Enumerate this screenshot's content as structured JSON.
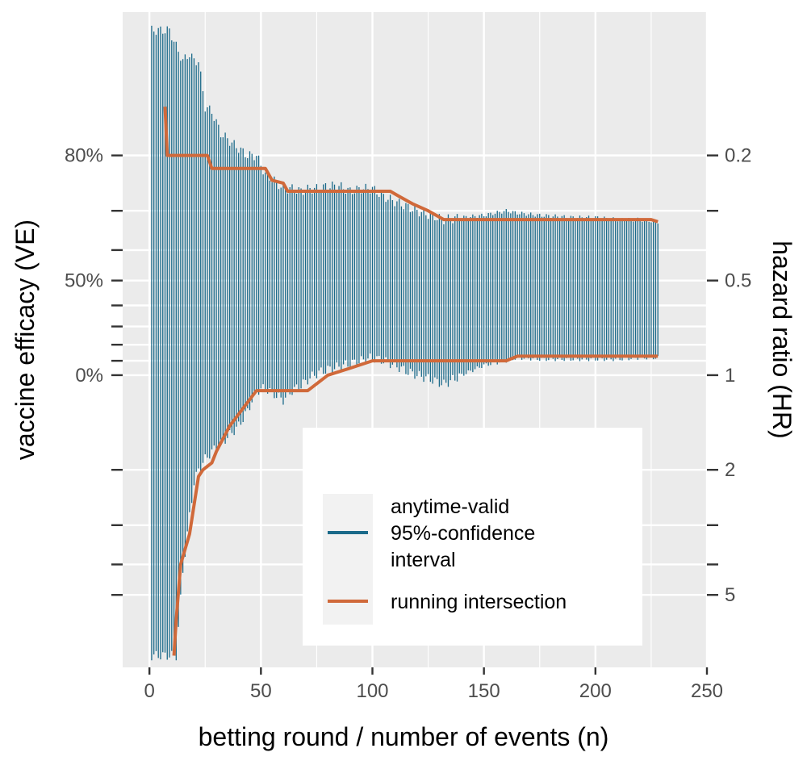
{
  "chart_data": {
    "type": "line",
    "xlabel": "betting round / number of events (n)",
    "ylabel_left": "vaccine efficacy (VE)",
    "ylabel_right": "hazard ratio (HR)",
    "xlim": [
      -12,
      250
    ],
    "hr_range_log_scale": [
      0.07,
      8.5
    ],
    "grid": true,
    "legend_position": "bottom-right-inside",
    "x_ticks": [
      0,
      50,
      100,
      150,
      200,
      250
    ],
    "x_tick_labels": [
      "0",
      "50",
      "100",
      "150",
      "200",
      "250"
    ],
    "left_axis": {
      "labeled_ticks_hr": [
        0.2,
        0.5,
        1
      ],
      "labels": [
        "80%",
        "50%",
        "0%"
      ],
      "minor_ticks_hr": [
        0.3,
        0.4,
        0.6,
        0.7,
        0.8,
        0.9,
        2,
        3,
        4,
        5
      ]
    },
    "right_axis": {
      "labeled_ticks_hr": [
        0.2,
        0.5,
        1,
        2,
        5
      ],
      "labels": [
        "0.2",
        "0.5",
        "1",
        "2",
        "5"
      ],
      "minor_ticks_hr": [
        0.3,
        3,
        4
      ]
    },
    "series": [
      {
        "name": "anytime-valid 95%-confidence interval",
        "kind": "interval",
        "color": "#1b6a8a",
        "x": [
          1,
          8,
          9,
          12,
          15,
          18,
          20,
          22,
          25,
          28,
          32,
          36,
          40,
          44,
          48,
          52,
          56,
          60,
          64,
          68,
          72,
          76,
          80,
          85,
          90,
          95,
          100,
          105,
          110,
          115,
          120,
          126,
          132,
          140,
          150,
          160,
          165,
          175,
          190,
          200,
          210,
          220,
          228
        ],
        "lower_hr": [
          7.8,
          7.8,
          7.8,
          7.8,
          4.2,
          2.8,
          2.2,
          2.0,
          1.85,
          1.75,
          1.65,
          1.55,
          1.45,
          1.3,
          1.12,
          1.1,
          1.15,
          1.2,
          1.12,
          1.08,
          1.02,
          0.98,
          0.96,
          0.94,
          0.92,
          0.9,
          0.88,
          0.9,
          0.93,
          0.97,
          1.0,
          1.03,
          1.07,
          1.0,
          0.93,
          0.9,
          0.88,
          0.89,
          0.89,
          0.89,
          0.89,
          0.88,
          0.88
        ],
        "upper_hr": [
          0.08,
          0.08,
          0.08,
          0.09,
          0.1,
          0.095,
          0.1,
          0.1,
          0.14,
          0.145,
          0.17,
          0.18,
          0.19,
          0.2,
          0.2,
          0.23,
          0.24,
          0.255,
          0.255,
          0.26,
          0.255,
          0.255,
          0.25,
          0.25,
          0.26,
          0.255,
          0.255,
          0.27,
          0.28,
          0.29,
          0.3,
          0.31,
          0.32,
          0.315,
          0.31,
          0.3,
          0.305,
          0.31,
          0.315,
          0.315,
          0.32,
          0.32,
          0.325
        ]
      },
      {
        "name": "running intersection",
        "kind": "line",
        "color": "#d0693a",
        "x": [
          7,
          8,
          9,
          26,
          28,
          52,
          55,
          60,
          62,
          108,
          112,
          118,
          125,
          132,
          225,
          228
        ],
        "upper_hr": [
          0.14,
          0.2,
          0.2,
          0.2,
          0.22,
          0.22,
          0.24,
          0.245,
          0.26,
          0.26,
          0.27,
          0.285,
          0.3,
          0.32,
          0.32,
          0.325
        ],
        "lower_hr_points": [
          [
            11,
            7.8
          ],
          [
            12,
            6.0
          ],
          [
            14,
            4.0
          ],
          [
            18,
            3.2
          ],
          [
            22,
            2.1
          ],
          [
            24,
            2.0
          ],
          [
            28,
            1.9
          ],
          [
            30,
            1.75
          ],
          [
            36,
            1.45
          ],
          [
            48,
            1.12
          ],
          [
            71,
            1.12
          ],
          [
            80,
            1.0
          ],
          [
            90,
            0.95
          ],
          [
            100,
            0.9
          ],
          [
            110,
            0.9
          ],
          [
            160,
            0.9
          ],
          [
            165,
            0.87
          ],
          [
            228,
            0.87
          ]
        ]
      }
    ]
  },
  "colors": {
    "panel_background": "#ebebeb",
    "grid": "#ffffff",
    "interval": "#1b6a8a",
    "intersection": "#d0693a",
    "axis_text": "#4d4d4d"
  }
}
